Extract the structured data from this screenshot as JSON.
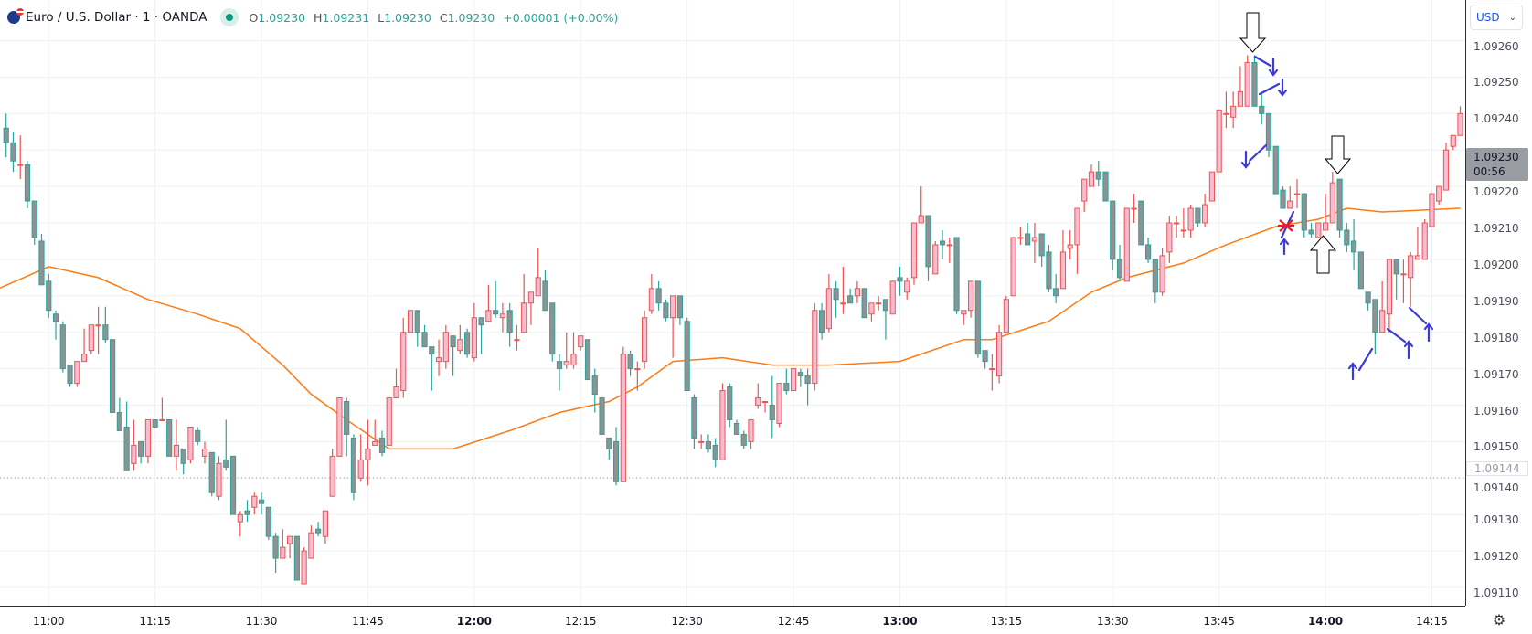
{
  "header": {
    "title": "Euro / U.S. Dollar · 1 · OANDA",
    "ohlc": [
      {
        "key": "O",
        "value": "1.09230"
      },
      {
        "key": "H",
        "value": "1.09231"
      },
      {
        "key": "L",
        "value": "1.09230"
      },
      {
        "key": "C",
        "value": "1.09230"
      }
    ],
    "change": "+0.00001 (+0.00%)"
  },
  "currency": "USD",
  "last_price": {
    "price": "1.09230",
    "countdown": "00:56"
  },
  "reference_price": "1.09144",
  "colors": {
    "up_fill": "#f8bbd0",
    "up_border": "#ef5350",
    "down_fill": "#8f9194",
    "down_border": "#26a69a",
    "ma": "#ff7b12",
    "grid": "#eef1f6",
    "annotation_blue": "#3b3bd6",
    "annotation_red": "#e8192c"
  },
  "chart_data": {
    "type": "candlestick",
    "symbol": "EURUSD",
    "interval_minutes": 1,
    "first_candle_time": "10:54",
    "ylim": [
      1.091,
      1.0927
    ],
    "grid": true,
    "y_ticks": [
      "1.09260",
      "1.09250",
      "1.09240",
      "1.09220",
      "1.09210",
      "1.09200",
      "1.09190",
      "1.09180",
      "1.09170",
      "1.09160",
      "1.09150",
      "1.09140",
      "1.09130",
      "1.09120",
      "1.09110"
    ],
    "x_ticks": [
      {
        "label": "11:00",
        "bold": false
      },
      {
        "label": "11:15",
        "bold": false
      },
      {
        "label": "11:30",
        "bold": false
      },
      {
        "label": "11:45",
        "bold": false
      },
      {
        "label": "12:00",
        "bold": true
      },
      {
        "label": "12:15",
        "bold": false
      },
      {
        "label": "12:30",
        "bold": false
      },
      {
        "label": "12:45",
        "bold": false
      },
      {
        "label": "13:00",
        "bold": true
      },
      {
        "label": "13:15",
        "bold": false
      },
      {
        "label": "13:30",
        "bold": false
      },
      {
        "label": "13:45",
        "bold": false
      },
      {
        "label": "14:00",
        "bold": true
      },
      {
        "label": "14:15",
        "bold": false
      }
    ],
    "ohlc_format": "[open, high, low, close] as last 3 digits of 1.09xxx",
    "candles": [
      [
        236,
        240,
        228,
        232
      ],
      [
        232,
        235,
        224,
        227
      ],
      [
        226,
        234,
        222,
        226
      ],
      [
        226,
        227,
        214,
        216
      ],
      [
        216,
        216,
        204,
        206
      ],
      [
        205,
        207,
        193,
        193
      ],
      [
        194,
        196,
        184,
        186
      ],
      [
        185,
        186,
        178,
        183
      ],
      [
        182,
        183,
        169,
        170
      ],
      [
        171,
        171,
        165,
        166
      ],
      [
        166,
        172,
        165,
        172
      ],
      [
        172,
        181,
        172,
        174
      ],
      [
        175,
        182,
        174,
        182
      ],
      [
        182,
        187,
        174,
        182
      ],
      [
        182,
        187,
        177,
        178
      ],
      [
        178,
        178,
        158,
        158
      ],
      [
        158,
        162,
        153,
        153
      ],
      [
        154,
        161,
        142,
        142
      ],
      [
        144,
        156,
        142,
        149
      ],
      [
        150,
        150,
        144,
        146
      ],
      [
        146,
        156,
        144,
        156
      ],
      [
        156,
        156,
        154,
        154
      ],
      [
        156,
        162,
        156,
        156
      ],
      [
        156,
        156,
        146,
        146
      ],
      [
        146,
        156,
        142,
        149
      ],
      [
        148,
        148,
        141,
        144
      ],
      [
        145,
        154,
        144,
        154
      ],
      [
        153,
        154,
        149,
        150
      ],
      [
        146,
        150,
        144,
        148
      ],
      [
        147,
        147,
        135,
        136
      ],
      [
        135,
        146,
        134,
        144
      ],
      [
        145,
        156,
        142,
        143
      ],
      [
        146,
        146,
        130,
        130
      ],
      [
        128,
        131,
        124,
        130
      ],
      [
        131,
        134,
        128,
        130
      ],
      [
        132,
        136,
        130,
        135
      ],
      [
        134,
        136,
        130,
        133
      ],
      [
        132,
        132,
        123,
        124
      ],
      [
        124,
        125,
        114,
        118
      ],
      [
        118,
        126,
        118,
        121
      ],
      [
        122,
        124,
        118,
        124
      ],
      [
        124,
        124,
        112,
        112
      ],
      [
        111,
        121,
        111,
        120
      ],
      [
        118,
        127,
        118,
        125
      ],
      [
        126,
        128,
        124,
        125
      ],
      [
        124,
        131,
        122,
        131
      ],
      [
        135,
        148,
        135,
        146
      ],
      [
        146,
        162,
        146,
        162
      ],
      [
        161,
        162,
        146,
        152
      ],
      [
        151,
        152,
        134,
        136
      ],
      [
        140,
        152,
        139,
        145
      ],
      [
        145,
        156,
        138,
        148
      ],
      [
        149,
        156,
        149,
        150
      ],
      [
        151,
        153,
        146,
        147
      ],
      [
        149,
        162,
        149,
        162
      ],
      [
        162,
        170,
        162,
        165
      ],
      [
        164,
        184,
        162,
        180
      ],
      [
        180,
        186,
        180,
        186
      ],
      [
        186,
        186,
        176,
        180
      ],
      [
        180,
        182,
        176,
        176
      ],
      [
        176,
        176,
        164,
        174
      ],
      [
        172,
        178,
        168,
        173
      ],
      [
        172,
        182,
        170,
        180
      ],
      [
        179,
        179,
        168,
        176
      ],
      [
        175,
        182,
        174,
        178
      ],
      [
        180,
        181,
        173,
        174
      ],
      [
        173,
        188,
        172,
        184
      ],
      [
        184,
        184,
        174,
        182
      ],
      [
        183,
        193,
        183,
        186
      ],
      [
        186,
        194,
        184,
        185
      ],
      [
        184,
        188,
        180,
        185
      ],
      [
        186,
        188,
        176,
        180
      ],
      [
        178,
        182,
        175,
        178
      ],
      [
        180,
        196,
        180,
        188
      ],
      [
        188,
        191,
        182,
        191
      ],
      [
        190,
        203,
        190,
        195
      ],
      [
        194,
        197,
        186,
        186
      ],
      [
        188,
        188,
        172,
        174
      ],
      [
        172,
        174,
        164,
        170
      ],
      [
        171,
        180,
        170,
        172
      ],
      [
        171,
        180,
        170,
        174
      ],
      [
        176,
        179,
        175,
        179
      ],
      [
        178,
        178,
        167,
        167
      ],
      [
        168,
        170,
        158,
        163
      ],
      [
        162,
        162,
        152,
        152
      ],
      [
        151,
        151,
        145,
        148
      ],
      [
        150,
        154,
        138,
        139
      ],
      [
        139,
        176,
        139,
        174
      ],
      [
        174,
        175,
        168,
        170
      ],
      [
        170,
        172,
        164,
        170
      ],
      [
        172,
        186,
        170,
        184
      ],
      [
        186,
        196,
        185,
        192
      ],
      [
        192,
        194,
        186,
        188
      ],
      [
        188,
        189,
        183,
        184
      ],
      [
        184,
        190,
        173,
        190
      ],
      [
        190,
        190,
        182,
        184
      ],
      [
        183,
        184,
        164,
        164
      ],
      [
        162,
        163,
        148,
        151
      ],
      [
        150,
        152,
        148,
        150
      ],
      [
        150,
        152,
        147,
        148
      ],
      [
        149,
        151,
        143,
        145
      ],
      [
        145,
        166,
        145,
        164
      ],
      [
        165,
        166,
        154,
        156
      ],
      [
        155,
        156,
        152,
        152
      ],
      [
        152,
        153,
        148,
        149
      ],
      [
        150,
        156,
        148,
        156
      ],
      [
        160,
        166,
        159,
        162
      ],
      [
        161,
        161,
        158,
        161
      ],
      [
        160,
        168,
        151,
        156
      ],
      [
        155,
        166,
        154,
        166
      ],
      [
        166,
        170,
        163,
        164
      ],
      [
        164,
        170,
        164,
        170
      ],
      [
        169,
        170,
        165,
        168
      ],
      [
        168,
        170,
        160,
        166
      ],
      [
        166,
        188,
        164,
        186
      ],
      [
        186,
        188,
        178,
        180
      ],
      [
        181,
        196,
        180,
        192
      ],
      [
        192,
        194,
        184,
        189
      ],
      [
        188,
        198,
        185,
        188
      ],
      [
        190,
        192,
        188,
        188
      ],
      [
        190,
        194,
        188,
        192
      ],
      [
        192,
        192,
        184,
        184
      ],
      [
        185,
        188,
        183,
        188
      ],
      [
        188,
        190,
        186,
        188
      ],
      [
        189,
        189,
        178,
        186
      ],
      [
        185,
        194,
        185,
        194
      ],
      [
        195,
        198,
        190,
        194
      ],
      [
        191,
        195,
        189,
        194
      ],
      [
        195,
        210,
        193,
        210
      ],
      [
        210,
        220,
        210,
        212
      ],
      [
        212,
        212,
        194,
        198
      ],
      [
        196,
        205,
        196,
        204
      ],
      [
        205,
        208,
        200,
        204
      ],
      [
        204,
        206,
        199,
        204
      ],
      [
        206,
        206,
        185,
        186
      ],
      [
        185,
        186,
        182,
        186
      ],
      [
        186,
        194,
        184,
        194
      ],
      [
        194,
        194,
        173,
        174
      ],
      [
        175,
        175,
        170,
        172
      ],
      [
        170,
        174,
        164,
        170
      ],
      [
        168,
        182,
        166,
        180
      ],
      [
        180,
        190,
        180,
        189
      ],
      [
        190,
        206,
        190,
        206
      ],
      [
        206,
        209,
        204,
        206
      ],
      [
        207,
        210,
        204,
        204
      ],
      [
        205,
        210,
        199,
        206
      ],
      [
        207,
        207,
        198,
        201
      ],
      [
        202,
        204,
        191,
        192
      ],
      [
        192,
        196,
        188,
        190
      ],
      [
        192,
        208,
        192,
        202
      ],
      [
        203,
        208,
        200,
        204
      ],
      [
        204,
        214,
        196,
        214
      ],
      [
        216,
        222,
        213,
        222
      ],
      [
        220,
        226,
        220,
        224
      ],
      [
        224,
        227,
        220,
        222
      ],
      [
        224,
        224,
        216,
        216
      ],
      [
        216,
        216,
        197,
        200
      ],
      [
        200,
        204,
        194,
        195
      ],
      [
        194,
        214,
        194,
        214
      ],
      [
        214,
        218,
        210,
        214
      ],
      [
        216,
        216,
        204,
        204
      ],
      [
        204,
        206,
        199,
        200
      ],
      [
        200,
        200,
        188,
        191
      ],
      [
        191,
        203,
        190,
        201
      ],
      [
        202,
        212,
        199,
        210
      ],
      [
        210,
        212,
        206,
        210
      ],
      [
        208,
        214,
        206,
        208
      ],
      [
        208,
        215,
        206,
        214
      ],
      [
        214,
        214,
        209,
        210
      ],
      [
        210,
        218,
        209,
        215
      ],
      [
        216,
        224,
        216,
        224
      ],
      [
        224,
        241,
        224,
        241
      ],
      [
        240,
        246,
        236,
        240
      ],
      [
        239,
        246,
        236,
        242
      ],
      [
        242,
        253,
        242,
        246
      ],
      [
        242,
        256,
        242,
        254
      ],
      [
        254,
        256,
        242,
        242
      ],
      [
        242,
        246,
        237,
        240
      ],
      [
        240,
        240,
        228,
        230
      ],
      [
        231,
        231,
        218,
        218
      ],
      [
        219,
        220,
        214,
        214
      ],
      [
        214,
        220,
        214,
        216
      ],
      [
        218,
        222,
        214,
        218
      ],
      [
        218,
        218,
        206,
        208
      ],
      [
        208,
        210,
        206,
        207
      ],
      [
        206,
        210,
        206,
        210
      ],
      [
        208,
        218,
        208,
        210
      ],
      [
        210,
        224,
        210,
        221
      ],
      [
        222,
        222,
        206,
        208
      ],
      [
        208,
        210,
        202,
        204
      ],
      [
        205,
        211,
        197,
        202
      ],
      [
        202,
        202,
        192,
        192
      ],
      [
        191,
        191,
        186,
        188
      ],
      [
        189,
        189,
        174,
        180
      ],
      [
        180,
        194,
        180,
        186
      ],
      [
        185,
        200,
        180,
        200
      ],
      [
        200,
        200,
        189,
        196
      ],
      [
        196,
        200,
        188,
        196
      ],
      [
        195,
        202,
        187,
        201
      ],
      [
        200,
        209,
        200,
        201
      ],
      [
        200,
        211,
        200,
        210
      ],
      [
        209,
        218,
        209,
        218
      ],
      [
        216,
        220,
        215,
        220
      ],
      [
        219,
        232,
        219,
        230
      ],
      [
        231,
        234,
        230,
        234
      ],
      [
        234,
        242,
        234,
        240
      ]
    ],
    "moving_average": {
      "name": "MA",
      "points_candle_index_price": [
        [
          0,
          1.09192
        ],
        [
          7,
          1.09198
        ],
        [
          14,
          1.09195
        ],
        [
          21,
          1.09189
        ],
        [
          28,
          1.09185
        ],
        [
          34,
          1.09181
        ],
        [
          40,
          1.09171
        ],
        [
          44,
          1.09163
        ],
        [
          49,
          1.09156
        ],
        [
          55,
          1.09148
        ],
        [
          64,
          1.09148
        ],
        [
          72,
          1.09153
        ],
        [
          79,
          1.09158
        ],
        [
          86,
          1.09161
        ],
        [
          90,
          1.09165
        ],
        [
          95,
          1.09172
        ],
        [
          102,
          1.09173
        ],
        [
          109,
          1.09171
        ],
        [
          117,
          1.09171
        ],
        [
          127,
          1.09172
        ],
        [
          136,
          1.09178
        ],
        [
          140,
          1.09178
        ],
        [
          148,
          1.09183
        ],
        [
          154,
          1.09191
        ],
        [
          159,
          1.09195
        ],
        [
          167,
          1.09199
        ],
        [
          173,
          1.09204
        ],
        [
          180,
          1.09209
        ],
        [
          186,
          1.09211
        ],
        [
          190,
          1.09214
        ],
        [
          195,
          1.09213
        ],
        [
          206,
          1.09214
        ]
      ]
    }
  }
}
